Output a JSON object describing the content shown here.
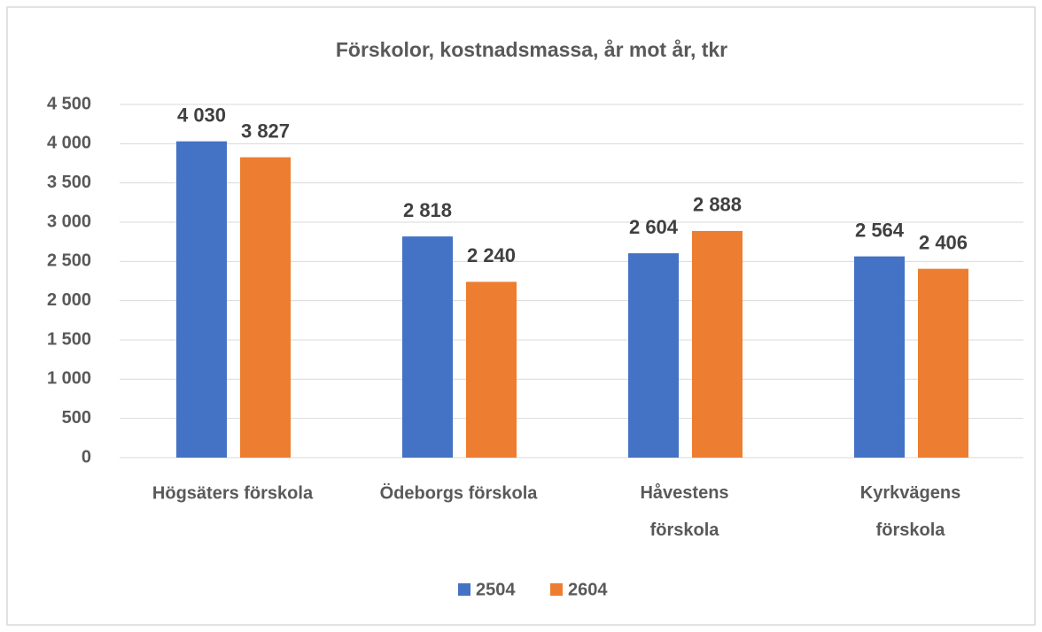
{
  "chart_data": {
    "type": "bar",
    "title": "Förskolor, kostnadsmassa, år mot år, tkr",
    "categories": [
      "Högsäters förskola",
      "Ödeborgs förskola",
      "Håvestens förskola",
      "Kyrkvägens förskola"
    ],
    "series": [
      {
        "name": "2504",
        "color": "#4472c4",
        "values": [
          4030,
          2818,
          2604,
          2564
        ],
        "value_labels": [
          "4 030",
          "2 818",
          "2 604",
          "2 564"
        ]
      },
      {
        "name": "2604",
        "color": "#ed7d31",
        "values": [
          3827,
          2240,
          2888,
          2406
        ],
        "value_labels": [
          "3 827",
          "2 240",
          "2 888",
          "2 406"
        ]
      }
    ],
    "ylim": [
      0,
      4500
    ],
    "yticks": [
      0,
      500,
      {
        "value": 1000,
        "label": "1 000"
      },
      {
        "value": 1500,
        "label": "1 500"
      },
      {
        "value": 2000,
        "label": "2 000"
      },
      {
        "value": 2500,
        "label": "2 500"
      },
      {
        "value": 3000,
        "label": "3 000"
      },
      {
        "value": 3500,
        "label": "3 500"
      },
      {
        "value": 4000,
        "label": "4 000"
      },
      {
        "value": 4500,
        "label": "4 500"
      }
    ],
    "grid": true,
    "legend": "bottom"
  }
}
